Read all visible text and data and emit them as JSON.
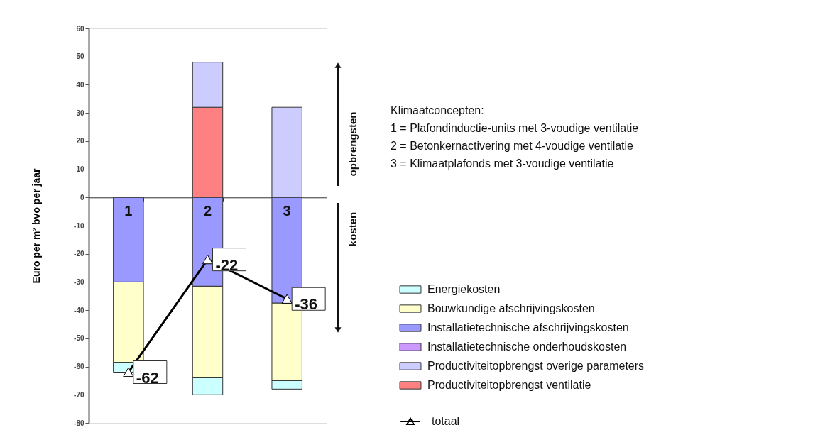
{
  "chart_data": {
    "type": "bar",
    "stacked": true,
    "categories": [
      "1",
      "2",
      "3"
    ],
    "ylabel": "Euro per m² bvo per jaar",
    "ylim": [
      -80,
      60
    ],
    "yticks": [
      -80,
      -70,
      -60,
      -50,
      -40,
      -30,
      -20,
      -10,
      0,
      10,
      20,
      30,
      40,
      50,
      60
    ],
    "grid": false,
    "legend": "right",
    "annotations": [
      "opbrengsten",
      "kosten",
      "Klimaatconcepten:",
      "1 = Plafondinductie-units met 3-voudige ventilatie",
      "2 = Betonkernactivering met 4-voudige ventilatie",
      "3 = Klimaatplafonds met 3-voudige ventilatie"
    ],
    "series": [
      {
        "name": "Productiviteitopbrengst ventilatie",
        "color": "#ff8080",
        "values": [
          0,
          32,
          0
        ]
      },
      {
        "name": "Productiviteitopbrengst overige parameters",
        "color": "#ccccff",
        "values": [
          0,
          16,
          32
        ]
      },
      {
        "name": "Installatietechnische onderhoudskosten",
        "color": "#cc99ff",
        "values": [
          0,
          0,
          0
        ]
      },
      {
        "name": "Installatietechnische afschrijvingskosten",
        "color": "#9999ff",
        "values": [
          -30,
          -31.5,
          -37.5
        ]
      },
      {
        "name": "Bouwkundige afschrijvingskosten",
        "color": "#ffffcc",
        "values": [
          -28.5,
          -32.5,
          -27.5
        ]
      },
      {
        "name": "Energiekosten",
        "color": "#ccffff",
        "values": [
          -3.5,
          -6,
          -3
        ]
      },
      {
        "name": "totaal",
        "type": "line",
        "color": "#000000",
        "marker": "triangle",
        "values": [
          -62,
          -22,
          -36
        ],
        "value_labels": [
          "-62",
          "-22",
          "-36"
        ]
      }
    ]
  }
}
